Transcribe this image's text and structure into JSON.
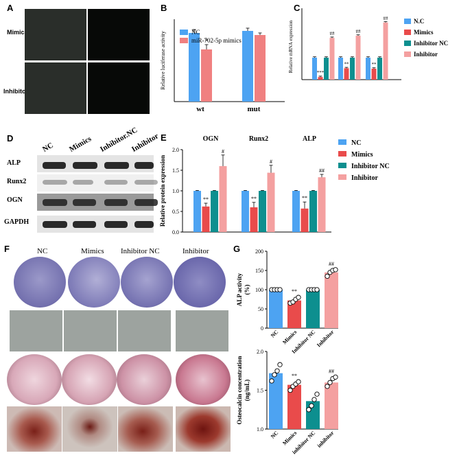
{
  "colors": {
    "blue": "#4da3f2",
    "red": "#e94b4b",
    "teal": "#0d8f8f",
    "pink": "#f4a0a0",
    "blot_band": "#1f1f1f"
  },
  "panel_labels": {
    "a": "A",
    "b": "B",
    "c": "C",
    "d": "D",
    "e": "E",
    "f": "F",
    "g": "G"
  },
  "panelA": {
    "rows": [
      "Mimics",
      "Inhibitor"
    ]
  },
  "panelD": {
    "lanes": [
      "NC",
      "Mimics",
      "Inhibitor.NC",
      "Inhibitor"
    ],
    "rows": [
      "ALP",
      "Runx2",
      "OGN",
      "GAPDH"
    ]
  },
  "panelF": {
    "columns": [
      "NC",
      "Mimics",
      "Inhibitor NC",
      "Inhibitor"
    ]
  },
  "chart_data": [
    {
      "id": "B",
      "type": "bar",
      "categories": [
        "wt",
        "mut"
      ],
      "ylabel": "Relative luciferase activity",
      "series": [
        {
          "name": "NC",
          "values": [
            1.0,
            1.03
          ]
        },
        {
          "name": "miR-702-5p mimics",
          "values": [
            0.76,
            0.97
          ]
        }
      ],
      "errors": [
        [
          0.05,
          0.04
        ],
        [
          0.07,
          0.03
        ]
      ],
      "annotations": [
        [
          "",
          ""
        ],
        [
          "*",
          ""
        ]
      ]
    },
    {
      "id": "C",
      "type": "bar",
      "ylabel": "Relative mRNA expression",
      "ylim": [
        0,
        3
      ],
      "series": [
        {
          "name": "N.C",
          "values": [
            1.0,
            1.0,
            1.0
          ]
        },
        {
          "name": "Mimics",
          "values": [
            0.12,
            0.52,
            0.5
          ]
        },
        {
          "name": "Inhibitor NC",
          "values": [
            1.0,
            1.0,
            1.0
          ]
        },
        {
          "name": "Inhibitor",
          "values": [
            1.9,
            2.0,
            2.6
          ]
        }
      ],
      "annotations": [
        [
          "",
          "***",
          "",
          "##"
        ],
        [
          "",
          "**",
          "",
          "##"
        ],
        [
          "",
          "**",
          "",
          "##"
        ]
      ]
    },
    {
      "id": "E",
      "type": "bar",
      "categories": [
        "OGN",
        "Runx2",
        "ALP"
      ],
      "ylabel": "Relative protein expression",
      "ylim": [
        0,
        2
      ],
      "yticks": [
        "0.0",
        "0.5",
        "1.0",
        "1.5",
        "2.0"
      ],
      "series": [
        {
          "name": "NC",
          "values": [
            1.0,
            1.0,
            1.0
          ]
        },
        {
          "name": "Mimics",
          "values": [
            0.62,
            0.6,
            0.57
          ]
        },
        {
          "name": "Inhibitor NC",
          "values": [
            1.0,
            1.0,
            1.0
          ]
        },
        {
          "name": "Inhibitor",
          "values": [
            1.6,
            1.44,
            1.33
          ]
        }
      ],
      "errors": [
        [
          0.01,
          0.08,
          0.01,
          0.27
        ],
        [
          0.01,
          0.12,
          0.01,
          0.18
        ],
        [
          0.01,
          0.16,
          0.01,
          0.07
        ]
      ],
      "annotations": [
        [
          "",
          "**",
          "",
          "#"
        ],
        [
          "",
          "**",
          "",
          "#"
        ],
        [
          "",
          "**",
          "",
          "##"
        ]
      ]
    },
    {
      "id": "G1",
      "type": "bar",
      "ylabel": "ALP activity",
      "ylabel2": "(%)",
      "ylim": [
        0,
        200
      ],
      "yticks": [
        "0",
        "50",
        "100",
        "150",
        "200"
      ],
      "categories": [
        "NC",
        "Mimics",
        "Inhibitor NC",
        "Inhibitor"
      ],
      "values": [
        100,
        72,
        100,
        145
      ],
      "annotations": [
        "",
        "**",
        "",
        "##"
      ],
      "points": [
        [
          100,
          100,
          100,
          100
        ],
        [
          65,
          68,
          75,
          80
        ],
        [
          100,
          100,
          100,
          100
        ],
        [
          135,
          145,
          150,
          152
        ]
      ]
    },
    {
      "id": "G2",
      "type": "bar",
      "ylabel": "Osteocalcin concentration",
      "ylabel2": "(ng/mL)",
      "ylim": [
        1.0,
        2.0
      ],
      "yticks": [
        "1.0",
        "1.5",
        "2.0"
      ],
      "categories": [
        "NC",
        "Mimics",
        "inhibitor NC",
        "inhibitor"
      ],
      "values": [
        1.72,
        1.57,
        1.36,
        1.6
      ],
      "annotations": [
        "",
        "**",
        "",
        "##"
      ],
      "points": [
        [
          1.62,
          1.7,
          1.75,
          1.83
        ],
        [
          1.5,
          1.55,
          1.58,
          1.61
        ],
        [
          1.25,
          1.3,
          1.38,
          1.45
        ],
        [
          1.55,
          1.6,
          1.65,
          1.67
        ]
      ]
    }
  ]
}
